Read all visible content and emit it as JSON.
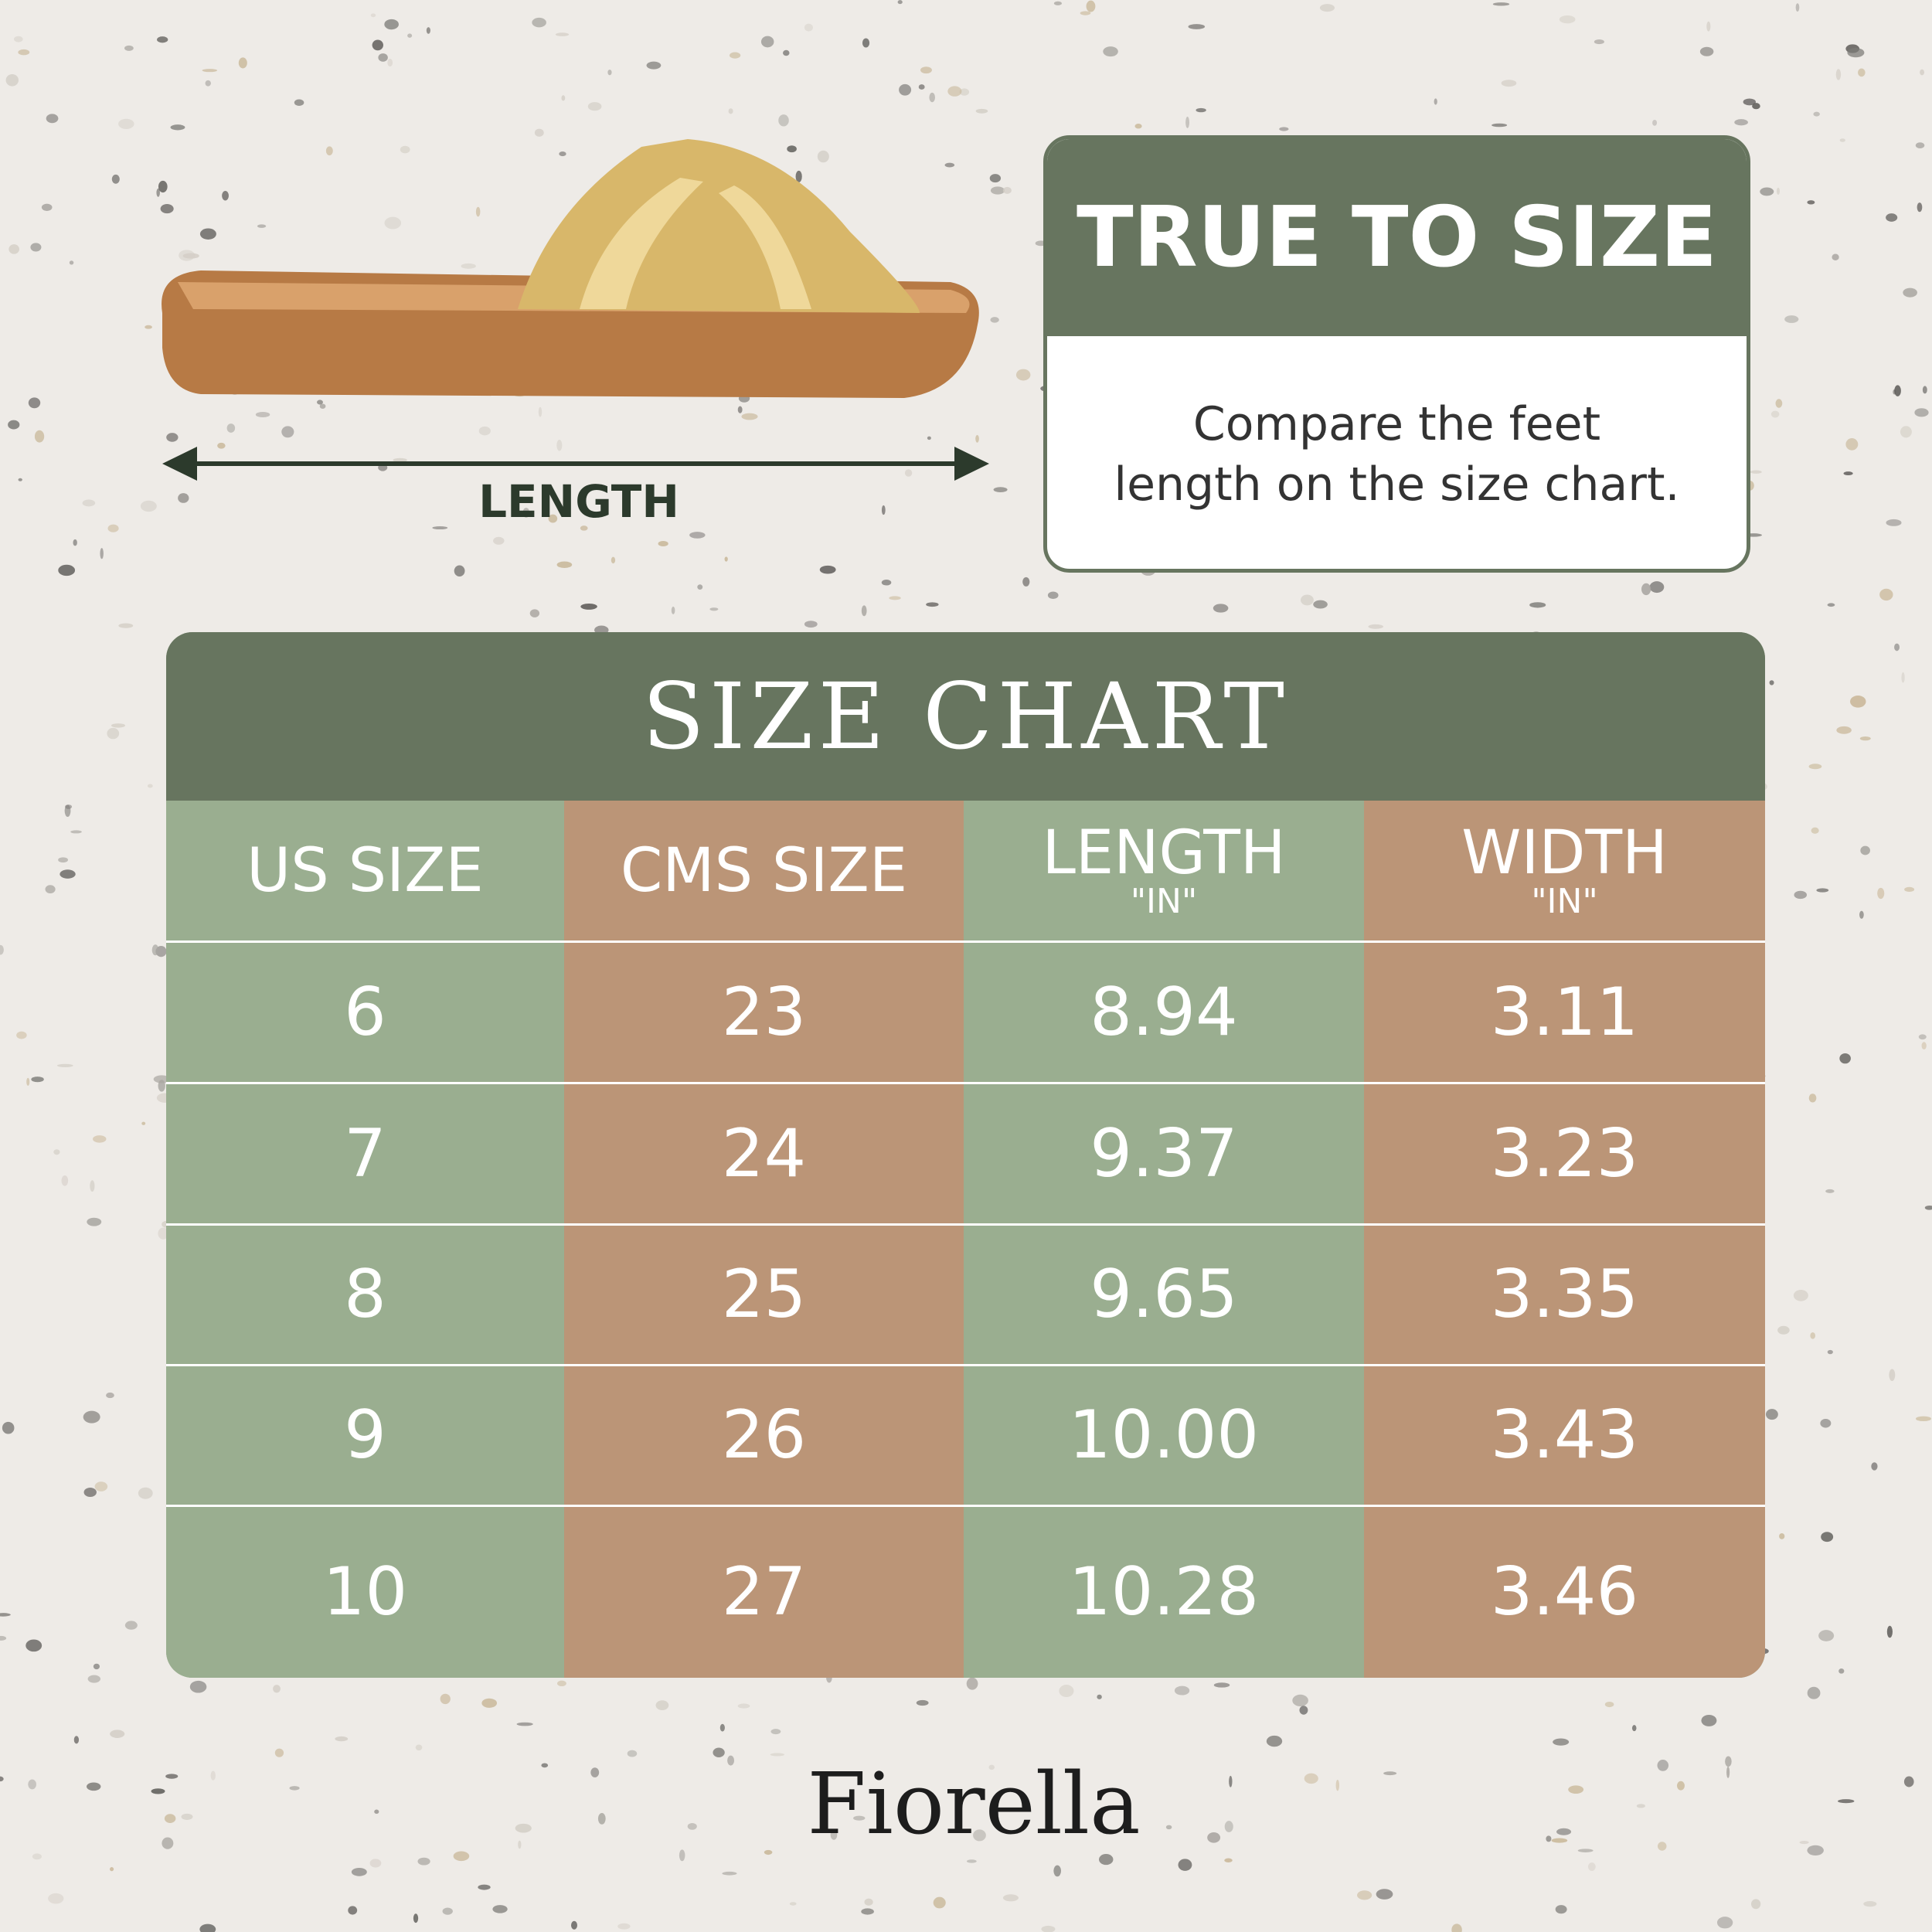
{
  "measure": {
    "label": "LENGTH"
  },
  "true_to_size": {
    "title": "TRUE TO SIZE",
    "lines": [
      "Compare the feet",
      "length on the size chart."
    ]
  },
  "size_chart": {
    "title": "SIZE CHART",
    "columns": [
      {
        "label": "US SIZE"
      },
      {
        "label": "CMS SIZE"
      },
      {
        "label": "LENGTH",
        "unit": "\"IN\""
      },
      {
        "label": "WIDTH",
        "unit": "\"IN\""
      }
    ],
    "rows": [
      [
        "6",
        "23",
        "8.94",
        "3.11"
      ],
      [
        "7",
        "24",
        "9.37",
        "3.23"
      ],
      [
        "8",
        "25",
        "9.65",
        "3.35"
      ],
      [
        "9",
        "26",
        "10.00",
        "3.43"
      ],
      [
        "10",
        "27",
        "10.28",
        "3.46"
      ]
    ]
  },
  "brand": "Fiorella"
}
